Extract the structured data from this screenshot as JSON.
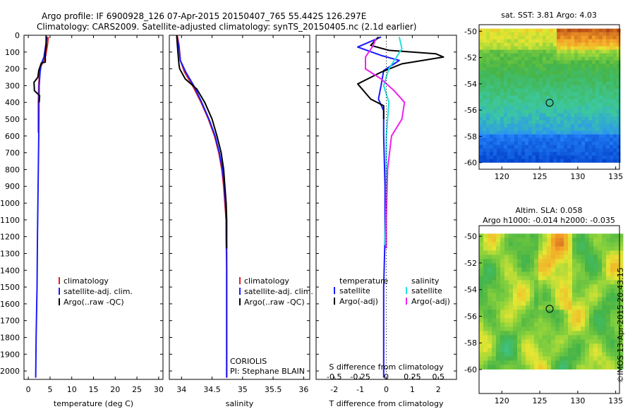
{
  "header": {
    "title": "Argo profile: IF 6900928_126 07-Apr-2015 20150407_765 55.442S 126.297E",
    "subtitle": "Climatology: CARS2009. Satellite-adjusted climatology: synTS_20150405.nc (2.1d earlier)"
  },
  "credit": "©IMOS 13-Apr-2015 20:43:15",
  "colors": {
    "climatology": "#e02020",
    "satellite": "#1a1aff",
    "argo": "#000000",
    "satellite_s": "#20e0e0",
    "argo_s": "#ee22ee"
  },
  "chart_data": [
    {
      "type": "line",
      "name": "temperature-panel",
      "xlabel": "temperature (deg C)",
      "ylabel": "",
      "xlim": [
        -1,
        31
      ],
      "ylim": [
        2050,
        0
      ],
      "xticks": [
        "0",
        "5",
        "10",
        "15",
        "20",
        "25",
        "30"
      ],
      "yticks": [
        "0",
        "100",
        "200",
        "300",
        "400",
        "500",
        "600",
        "700",
        "800",
        "900",
        "1000",
        "1100",
        "1200",
        "1300",
        "1400",
        "1500",
        "1600",
        "1700",
        "1800",
        "1900",
        "2000"
      ],
      "legend": [
        "climatology",
        "satellite-adj. clim.",
        "Argo(..raw -QC)"
      ],
      "series": [
        {
          "color": "#e02020",
          "points": [
            [
              4.6,
              10
            ],
            [
              4.4,
              60
            ],
            [
              4.0,
              120
            ],
            [
              3.4,
              160
            ],
            [
              2.6,
              200
            ],
            [
              2.4,
              300
            ],
            [
              2.3,
              400
            ],
            [
              2.3,
              580
            ]
          ]
        },
        {
          "color": "#1a1aff",
          "points": [
            [
              4.3,
              10
            ],
            [
              4.0,
              60
            ],
            [
              3.6,
              130
            ],
            [
              3.0,
              170
            ],
            [
              2.7,
              220
            ],
            [
              2.5,
              300
            ],
            [
              2.45,
              400
            ],
            [
              2.4,
              600
            ],
            [
              2.3,
              800
            ],
            [
              2.2,
              1000
            ],
            [
              2.1,
              1200
            ],
            [
              2.0,
              1500
            ],
            [
              1.8,
              1800
            ],
            [
              1.7,
              2040
            ]
          ]
        },
        {
          "color": "#000000",
          "points": [
            [
              4.1,
              0
            ],
            [
              4.1,
              60
            ],
            [
              3.9,
              100
            ],
            [
              3.9,
              160
            ],
            [
              3.0,
              165
            ],
            [
              2.4,
              210
            ],
            [
              2.2,
              250
            ],
            [
              1.3,
              280
            ],
            [
              1.4,
              330
            ],
            [
              2.6,
              360
            ],
            [
              2.5,
              400
            ]
          ]
        }
      ]
    },
    {
      "type": "line",
      "name": "salinity-panel",
      "xlabel": "salinity",
      "xlim": [
        33.8,
        36.1
      ],
      "ylim": [
        2050,
        0
      ],
      "xticks": [
        "34",
        "34.5",
        "35",
        "35.5",
        "36"
      ],
      "legend": [
        "climatology",
        "satellite-adj. clim.",
        "Argo(..raw -QC)"
      ],
      "annotation": [
        "CORIOLIS",
        "PI: Stephane BLAIN"
      ],
      "series": [
        {
          "color": "#e02020",
          "points": [
            [
              33.93,
              0
            ],
            [
              33.96,
              60
            ],
            [
              33.98,
              150
            ],
            [
              34.05,
              220
            ],
            [
              34.18,
              300
            ],
            [
              34.32,
              400
            ],
            [
              34.44,
              500
            ],
            [
              34.54,
              600
            ],
            [
              34.61,
              700
            ],
            [
              34.66,
              800
            ],
            [
              34.69,
              900
            ],
            [
              34.71,
              1000
            ],
            [
              34.73,
              1100
            ],
            [
              34.73,
              1200
            ],
            [
              34.74,
              1400
            ],
            [
              34.74,
              1700
            ],
            [
              34.74,
              2040
            ]
          ]
        },
        {
          "color": "#1a1aff",
          "points": [
            [
              33.92,
              0
            ],
            [
              33.96,
              80
            ],
            [
              33.98,
              150
            ],
            [
              34.07,
              220
            ],
            [
              34.2,
              300
            ],
            [
              34.33,
              400
            ],
            [
              34.45,
              500
            ],
            [
              34.55,
              600
            ],
            [
              34.62,
              700
            ],
            [
              34.67,
              800
            ],
            [
              34.7,
              900
            ],
            [
              34.72,
              1000
            ],
            [
              34.73,
              1100
            ],
            [
              34.74,
              1300
            ],
            [
              34.74,
              1600
            ],
            [
              34.74,
              2040
            ]
          ]
        },
        {
          "color": "#000000",
          "points": [
            [
              33.92,
              0
            ],
            [
              33.94,
              100
            ],
            [
              33.96,
              180
            ],
            [
              33.97,
              200
            ],
            [
              34.06,
              260
            ],
            [
              34.25,
              320
            ],
            [
              34.38,
              400
            ],
            [
              34.5,
              500
            ],
            [
              34.58,
              600
            ],
            [
              34.65,
              700
            ],
            [
              34.69,
              800
            ],
            [
              34.71,
              900
            ],
            [
              34.73,
              1000
            ],
            [
              34.74,
              1100
            ],
            [
              34.74,
              1200
            ],
            [
              34.74,
              1270
            ]
          ]
        }
      ]
    },
    {
      "type": "line",
      "name": "difference-panel",
      "xlabel": "T difference from climatology",
      "xlabel2": "S difference from climatology",
      "xlim": [
        -2.7,
        2.7
      ],
      "ylim": [
        2050,
        0
      ],
      "xticks": [
        "-2",
        "-1",
        "0",
        "1",
        "2"
      ],
      "xticks_s": [
        "-0.5",
        "-0.25",
        "0",
        "0.25",
        "0.5"
      ],
      "legend": {
        "temperature_title": "temperature",
        "salinity_title": "salinity",
        "items": [
          "satellite",
          "Argo(-adj)",
          "satellite",
          "Argo(-adj)"
        ]
      },
      "series": [
        {
          "color": "#1a1aff",
          "points": [
            [
              -0.2,
              10
            ],
            [
              -1.1,
              70
            ],
            [
              -0.2,
              120
            ],
            [
              0.5,
              150
            ],
            [
              0.3,
              170
            ],
            [
              -0.1,
              210
            ],
            [
              -0.2,
              300
            ],
            [
              -0.3,
              380
            ],
            [
              -0.1,
              450
            ],
            [
              -0.1,
              600
            ],
            [
              -0.05,
              900
            ],
            [
              -0.05,
              1200
            ],
            [
              -0.1,
              1500
            ],
            [
              -0.1,
              1800
            ],
            [
              -0.1,
              2040
            ]
          ]
        },
        {
          "color": "#000000",
          "points": [
            [
              -0.3,
              10
            ],
            [
              -0.6,
              60
            ],
            [
              0.1,
              90
            ],
            [
              1.9,
              110
            ],
            [
              2.2,
              130
            ],
            [
              0.6,
              170
            ],
            [
              -0.2,
              220
            ],
            [
              -1.1,
              290
            ],
            [
              -0.6,
              380
            ],
            [
              -0.1,
              420
            ],
            [
              -0.1,
              500
            ]
          ]
        },
        {
          "color": "#20e0e0",
          "points": [
            [
              0.5,
              10
            ],
            [
              0.6,
              80
            ],
            [
              0.1,
              200
            ],
            [
              -0.1,
              300
            ],
            [
              0.1,
              400
            ],
            [
              0.0,
              600
            ],
            [
              0.0,
              1000
            ],
            [
              -0.05,
              1250
            ]
          ]
        },
        {
          "color": "#ee22ee",
          "points": [
            [
              -0.4,
              20
            ],
            [
              -0.5,
              60
            ],
            [
              -0.8,
              130
            ],
            [
              -0.8,
              200
            ],
            [
              -0.2,
              260
            ],
            [
              0.3,
              330
            ],
            [
              0.7,
              400
            ],
            [
              0.6,
              500
            ],
            [
              0.2,
              600
            ],
            [
              0.05,
              800
            ],
            [
              0.0,
              1100
            ],
            [
              0.0,
              1270
            ]
          ]
        }
      ]
    },
    {
      "type": "heatmap",
      "name": "sst-map",
      "title": "sat. SST: 3.81  Argo: 4.03",
      "xlim": [
        117,
        135.5
      ],
      "ylim": [
        -60.5,
        -49.5
      ],
      "xticks": [
        "120",
        "125",
        "130",
        "135"
      ],
      "yticks": [
        "-50",
        "-52",
        "-54",
        "-56",
        "-58",
        "-60"
      ],
      "marker": {
        "lon": 126.297,
        "lat": -55.442
      }
    },
    {
      "type": "heatmap",
      "name": "sla-map",
      "title": "Altim. SLA: 0.058",
      "subtitle": "Argo h1000: -0.014  h2000: -0.035",
      "xlim": [
        117,
        135.5
      ],
      "ylim": [
        -61.8,
        -49.2
      ],
      "xticks": [
        "120",
        "125",
        "130",
        "135"
      ],
      "yticks": [
        "-50",
        "-52",
        "-54",
        "-56",
        "-58",
        "-60"
      ],
      "marker": {
        "lon": 126.297,
        "lat": -55.442
      }
    }
  ]
}
